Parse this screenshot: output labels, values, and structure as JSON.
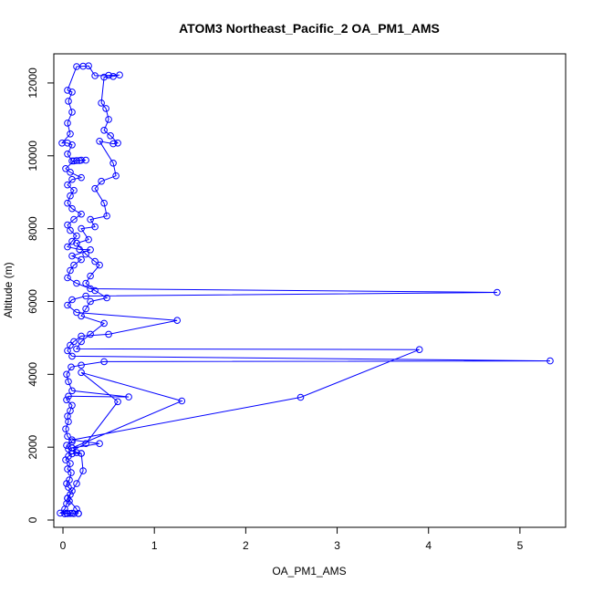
{
  "chart_data": {
    "type": "line",
    "title": "ATOM3 Northeast_Pacific_2 OA_PM1_AMS",
    "xlabel": "OA_PM1_AMS",
    "ylabel": "Altitude (m)",
    "xlim": [
      -0.1,
      5.5
    ],
    "ylim": [
      -200,
      12800
    ],
    "x_ticks": [
      0,
      1,
      2,
      3,
      4,
      5
    ],
    "y_ticks": [
      0,
      2000,
      4000,
      6000,
      8000,
      10000,
      12000
    ],
    "grid": false,
    "legend": "none",
    "series_color": "#0000ff",
    "marker": "open-circle",
    "series": [
      {
        "points": [
          [
            0.02,
            170
          ],
          [
            0.05,
            175
          ],
          [
            0.08,
            180
          ],
          [
            0.12,
            175
          ],
          [
            0.17,
            175
          ],
          [
            0.1,
            185
          ],
          [
            0.04,
            190
          ],
          [
            -0.03,
            190
          ],
          [
            0.02,
            300
          ],
          [
            0.04,
            450
          ],
          [
            0.07,
            520
          ],
          [
            0.05,
            600
          ],
          [
            0.08,
            700
          ],
          [
            0.1,
            800
          ],
          [
            0.06,
            900
          ],
          [
            0.04,
            1000
          ],
          [
            0.07,
            1100
          ],
          [
            0.09,
            1300
          ],
          [
            0.05,
            1400
          ],
          [
            0.08,
            1550
          ],
          [
            0.03,
            1650
          ],
          [
            0.06,
            1750
          ],
          [
            0.1,
            1820
          ],
          [
            0.2,
            1830
          ],
          [
            0.15,
            1850
          ],
          [
            0.06,
            1950
          ],
          [
            0.04,
            2050
          ],
          [
            0.1,
            2150
          ],
          [
            0.05,
            2300
          ],
          [
            0.03,
            2500
          ],
          [
            0.06,
            2700
          ],
          [
            0.05,
            2850
          ],
          [
            0.08,
            3000
          ],
          [
            0.1,
            3150
          ],
          [
            0.04,
            3300
          ],
          [
            0.06,
            3400
          ],
          [
            0.72,
            3380
          ],
          [
            0.1,
            3550
          ],
          [
            0.06,
            3800
          ],
          [
            0.04,
            4000
          ],
          [
            0.09,
            4200
          ],
          [
            0.2,
            4250
          ],
          [
            0.45,
            4350
          ],
          [
            5.33,
            4370
          ],
          [
            0.1,
            4500
          ],
          [
            0.05,
            4650
          ],
          [
            0.08,
            4800
          ],
          [
            0.12,
            4900
          ],
          [
            0.2,
            5050
          ],
          [
            0.5,
            5100
          ],
          [
            1.25,
            5480
          ],
          [
            0.15,
            5700
          ],
          [
            0.05,
            5900
          ],
          [
            0.1,
            6050
          ],
          [
            0.25,
            6150
          ],
          [
            4.75,
            6250
          ],
          [
            0.3,
            6350
          ],
          [
            0.15,
            6500
          ],
          [
            0.05,
            6650
          ],
          [
            0.08,
            6850
          ],
          [
            0.12,
            7000
          ],
          [
            0.2,
            7150
          ],
          [
            0.1,
            7250
          ],
          [
            0.3,
            7420
          ],
          [
            0.18,
            7430
          ],
          [
            0.05,
            7500
          ],
          [
            0.1,
            7650
          ],
          [
            0.15,
            7800
          ],
          [
            0.08,
            7950
          ],
          [
            0.05,
            8100
          ],
          [
            0.12,
            8250
          ],
          [
            0.2,
            8400
          ],
          [
            0.1,
            8550
          ],
          [
            0.05,
            8700
          ],
          [
            0.08,
            8900
          ],
          [
            0.12,
            9050
          ],
          [
            0.05,
            9200
          ],
          [
            0.1,
            9350
          ],
          [
            0.2,
            9400
          ],
          [
            0.08,
            9550
          ],
          [
            0.03,
            9650
          ],
          [
            0.12,
            9860
          ],
          [
            0.15,
            9870
          ],
          [
            0.2,
            9880
          ],
          [
            0.25,
            9880
          ],
          [
            0.18,
            9870
          ],
          [
            0.1,
            9860
          ],
          [
            0.05,
            10050
          ],
          [
            0.1,
            10300
          ],
          [
            0.05,
            10350
          ],
          [
            -0.01,
            10350
          ],
          [
            0.08,
            10600
          ],
          [
            0.05,
            10900
          ],
          [
            0.1,
            11200
          ],
          [
            0.06,
            11500
          ],
          [
            0.1,
            11750
          ],
          [
            0.05,
            11800
          ],
          [
            0.15,
            12450
          ],
          [
            0.22,
            12460
          ],
          [
            0.28,
            12470
          ],
          [
            0.35,
            12200
          ],
          [
            0.5,
            12210
          ],
          [
            0.62,
            12220
          ],
          [
            0.55,
            12180
          ],
          [
            0.45,
            12160
          ],
          [
            0.42,
            11450
          ],
          [
            0.47,
            11300
          ],
          [
            0.5,
            11000
          ],
          [
            0.45,
            10700
          ],
          [
            0.52,
            10550
          ],
          [
            0.6,
            10350
          ],
          [
            0.55,
            10330
          ],
          [
            0.4,
            10400
          ],
          [
            0.55,
            9800
          ],
          [
            0.58,
            9450
          ],
          [
            0.42,
            9300
          ],
          [
            0.35,
            9100
          ],
          [
            0.45,
            8700
          ],
          [
            0.48,
            8350
          ],
          [
            0.3,
            8250
          ],
          [
            0.35,
            8050
          ],
          [
            0.2,
            8000
          ],
          [
            0.28,
            7700
          ],
          [
            0.15,
            7600
          ],
          [
            0.25,
            7300
          ],
          [
            0.35,
            7100
          ],
          [
            0.4,
            7000
          ],
          [
            0.3,
            6700
          ],
          [
            0.25,
            6500
          ],
          [
            0.35,
            6300
          ],
          [
            0.48,
            6100
          ],
          [
            0.3,
            6000
          ],
          [
            0.25,
            5800
          ],
          [
            0.2,
            5600
          ],
          [
            0.45,
            5400
          ],
          [
            0.3,
            5100
          ],
          [
            0.2,
            4900
          ],
          [
            0.15,
            4700
          ],
          [
            3.9,
            4680
          ],
          [
            2.6,
            3370
          ],
          [
            0.1,
            2200
          ],
          [
            0.4,
            2100
          ],
          [
            0.1,
            1980
          ],
          [
            1.3,
            3270
          ],
          [
            0.2,
            4050
          ],
          [
            0.6,
            3250
          ],
          [
            0.25,
            2100
          ],
          [
            0.1,
            1900
          ],
          [
            0.2,
            1830
          ],
          [
            0.22,
            1350
          ],
          [
            0.15,
            1000
          ],
          [
            0.05,
            600
          ],
          [
            0.15,
            300
          ],
          [
            0.17,
            180
          ]
        ]
      }
    ]
  }
}
